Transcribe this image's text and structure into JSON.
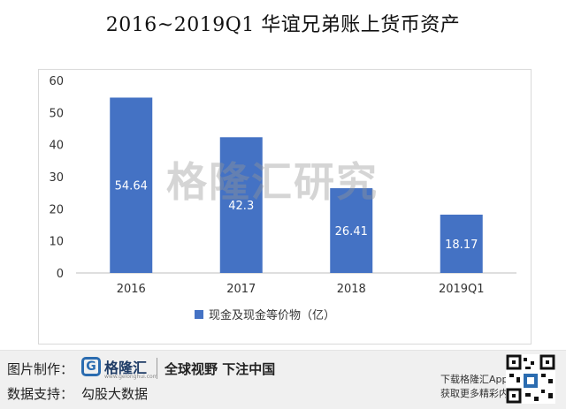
{
  "title": "2016~2019Q1 华谊兄弟账上货币资产",
  "watermark": "格隆汇研究",
  "chart_data": {
    "type": "bar",
    "categories": [
      "2016",
      "2017",
      "2018",
      "2019Q1"
    ],
    "series": [
      {
        "name": "现金及现金等价物（亿）",
        "values": [
          54.64,
          42.3,
          26.41,
          18.17
        ]
      }
    ],
    "data_labels": [
      "54.64",
      "42.3",
      "26.41",
      "18.17"
    ],
    "yticks": [
      0,
      10,
      20,
      30,
      40,
      50,
      60
    ],
    "ylim": [
      0,
      60
    ],
    "grid": false,
    "legend_position": "bottom",
    "bar_color": "#4472c4"
  },
  "footer": {
    "made_by_label": "图片制作：",
    "logo_mark": "G",
    "logo_name": "格隆汇",
    "logo_url": "www.gelonghui.com",
    "slogan": "全球视野 下注中国",
    "data_support_label": "数据支持：",
    "data_source": "勾股大数据",
    "app_line1": "下载格隆汇App",
    "app_line2": "获取更多精彩内容"
  }
}
